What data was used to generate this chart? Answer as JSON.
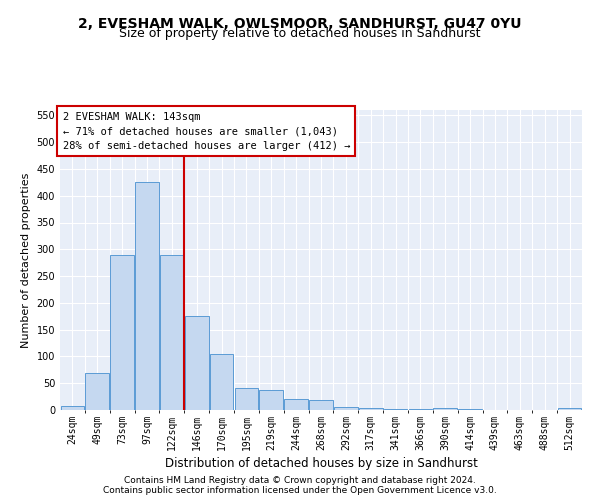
{
  "title": "2, EVESHAM WALK, OWLSMOOR, SANDHURST, GU47 0YU",
  "subtitle": "Size of property relative to detached houses in Sandhurst",
  "xlabel": "Distribution of detached houses by size in Sandhurst",
  "ylabel": "Number of detached properties",
  "categories": [
    "24sqm",
    "49sqm",
    "73sqm",
    "97sqm",
    "122sqm",
    "146sqm",
    "170sqm",
    "195sqm",
    "219sqm",
    "244sqm",
    "268sqm",
    "292sqm",
    "317sqm",
    "341sqm",
    "366sqm",
    "390sqm",
    "414sqm",
    "439sqm",
    "463sqm",
    "488sqm",
    "512sqm"
  ],
  "values": [
    8,
    70,
    290,
    425,
    290,
    175,
    105,
    42,
    38,
    20,
    18,
    6,
    3,
    2,
    1,
    4,
    1,
    0,
    0,
    0,
    3
  ],
  "bar_color": "#c5d8f0",
  "bar_edge_color": "#5b9bd5",
  "highlight_line_color": "#cc0000",
  "annotation_box_text": "2 EVESHAM WALK: 143sqm\n← 71% of detached houses are smaller (1,043)\n28% of semi-detached houses are larger (412) →",
  "annotation_box_color": "#cc0000",
  "ylim": [
    0,
    560
  ],
  "yticks": [
    0,
    50,
    100,
    150,
    200,
    250,
    300,
    350,
    400,
    450,
    500,
    550
  ],
  "footer_line1": "Contains HM Land Registry data © Crown copyright and database right 2024.",
  "footer_line2": "Contains public sector information licensed under the Open Government Licence v3.0.",
  "fig_bg_color": "#ffffff",
  "plot_bg_color": "#e8eef8",
  "title_fontsize": 10,
  "subtitle_fontsize": 9,
  "tick_fontsize": 7,
  "ylabel_fontsize": 8,
  "xlabel_fontsize": 8.5,
  "footer_fontsize": 6.5,
  "annotation_fontsize": 7.5
}
